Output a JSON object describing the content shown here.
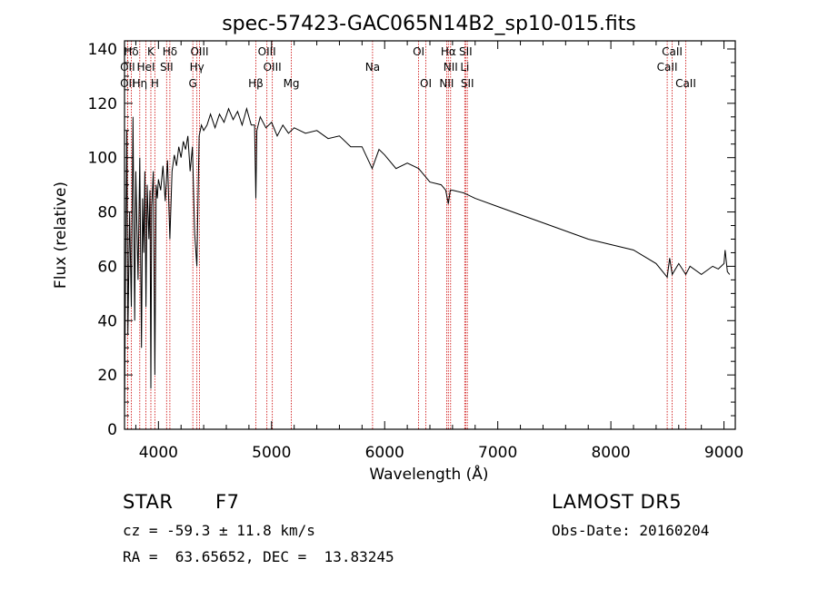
{
  "chart_data": {
    "type": "line",
    "title": "spec-57423-GAC065N14B2_sp10-015.fits",
    "xlabel": "Wavelength (Å)",
    "ylabel": "Flux (relative)",
    "xlim": [
      3700,
      9100
    ],
    "ylim": [
      0,
      143
    ],
    "xticks": [
      4000,
      5000,
      6000,
      7000,
      8000,
      9000
    ],
    "yticks": [
      0,
      20,
      40,
      60,
      80,
      100,
      120,
      140
    ],
    "grid": false,
    "line_color": "#000000",
    "marker_color": "#cc0000",
    "series": [
      {
        "x": [
          3700,
          3710,
          3720,
          3730,
          3745,
          3760,
          3775,
          3790,
          3800,
          3820,
          3835,
          3850,
          3860,
          3870,
          3880,
          3890,
          3900,
          3915,
          3925,
          3933,
          3940,
          3955,
          3968,
          3980,
          3990,
          4000,
          4020,
          4040,
          4060,
          4080,
          4101,
          4120,
          4140,
          4160,
          4180,
          4200,
          4220,
          4240,
          4260,
          4280,
          4300,
          4320,
          4340,
          4360,
          4380,
          4400,
          4430,
          4460,
          4500,
          4540,
          4580,
          4620,
          4660,
          4700,
          4740,
          4780,
          4820,
          4850,
          4861,
          4870,
          4900,
          4950,
          5000,
          5050,
          5100,
          5150,
          5200,
          5300,
          5400,
          5500,
          5600,
          5700,
          5800,
          5890,
          5950,
          6000,
          6100,
          6200,
          6300,
          6400,
          6500,
          6540,
          6563,
          6580,
          6600,
          6700,
          6800,
          7000,
          7200,
          7400,
          7600,
          7800,
          8000,
          8200,
          8400,
          8498,
          8520,
          8542,
          8600,
          8662,
          8700,
          8800,
          8900,
          8950,
          9000,
          9010,
          9030,
          9050
        ],
        "y": [
          5,
          60,
          110,
          35,
          80,
          45,
          115,
          40,
          95,
          55,
          100,
          30,
          85,
          65,
          95,
          45,
          90,
          70,
          88,
          15,
          82,
          95,
          20,
          90,
          85,
          92,
          88,
          97,
          84,
          99,
          70,
          95,
          101,
          97,
          104,
          100,
          106,
          103,
          108,
          95,
          104,
          72,
          60,
          108,
          112,
          110,
          112,
          116,
          111,
          116,
          113,
          118,
          114,
          117,
          112,
          118,
          112,
          112,
          85,
          110,
          115,
          111,
          113,
          108,
          112,
          109,
          111,
          109,
          110,
          107,
          108,
          104,
          104,
          96,
          103,
          101,
          96,
          98,
          96,
          91,
          90,
          88,
          83,
          88,
          88,
          87,
          85,
          82,
          79,
          76,
          73,
          70,
          68,
          66,
          61,
          56,
          63,
          57,
          61,
          57,
          60,
          57,
          60,
          59,
          61,
          66,
          58,
          57
        ]
      }
    ],
    "markers": [
      {
        "label": "Hδ",
        "row": 1,
        "x": 3760
      },
      {
        "label": "K",
        "row": 1,
        "x": 3933
      },
      {
        "label": "Hδ",
        "row": 1,
        "x": 4101
      },
      {
        "label": "OIII",
        "row": 1,
        "x": 4363
      },
      {
        "label": "OIII",
        "row": 1,
        "x": 4959
      },
      {
        "label": "OI",
        "row": 1,
        "x": 6300
      },
      {
        "label": "Hα",
        "row": 1,
        "x": 6563
      },
      {
        "label": "SII",
        "row": 1,
        "x": 6716
      },
      {
        "label": "CaII",
        "row": 1,
        "x": 8542
      },
      {
        "label": "OII",
        "row": 2,
        "x": 3727
      },
      {
        "label": "HeI",
        "row": 2,
        "x": 3889
      },
      {
        "label": "SII",
        "row": 2,
        "x": 4072
      },
      {
        "label": "Hγ",
        "row": 2,
        "x": 4340
      },
      {
        "label": "OIII",
        "row": 2,
        "x": 5007
      },
      {
        "label": "Na",
        "row": 2,
        "x": 5893
      },
      {
        "label": "NII",
        "row": 2,
        "x": 6583
      },
      {
        "label": "Li",
        "row": 2,
        "x": 6708
      },
      {
        "label": "CaII",
        "row": 2,
        "x": 8498
      },
      {
        "label": "OII",
        "row": 3,
        "x": 3727
      },
      {
        "label": "Hη",
        "row": 3,
        "x": 3835
      },
      {
        "label": "H",
        "row": 3,
        "x": 3968
      },
      {
        "label": "G",
        "row": 3,
        "x": 4304
      },
      {
        "label": "Hβ",
        "row": 3,
        "x": 4861
      },
      {
        "label": "Mg",
        "row": 3,
        "x": 5175
      },
      {
        "label": "OI",
        "row": 3,
        "x": 6364
      },
      {
        "label": "NII",
        "row": 3,
        "x": 6548
      },
      {
        "label": "SII",
        "row": 3,
        "x": 6731
      },
      {
        "label": "CaII",
        "row": 3,
        "x": 8662
      }
    ]
  },
  "info": {
    "object_class": "STAR",
    "subclass": "F7",
    "survey": "LAMOST DR5",
    "cz": "cz = -59.3 ± 11.8 km/s",
    "obs_date": "Obs-Date: 20160204",
    "coords": "RA =  63.65652, DEC =  13.83245"
  }
}
